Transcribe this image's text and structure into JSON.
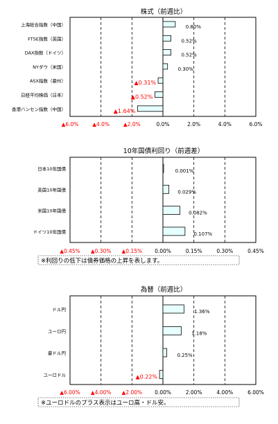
{
  "colors": {
    "bar_fill": "#e6ffff",
    "bar_stroke": "#000000",
    "negative_text": "#ff0000",
    "text": "#000000",
    "frame": "#000000"
  },
  "chart_data": [
    {
      "type": "bar",
      "orientation": "horizontal",
      "title": "株式（前週比）",
      "categories": [
        "上海総合指数（中国）",
        "FTSE指数（英国）",
        "DAX指数（ドイツ）",
        "NYダウ（米国）",
        "ASX指数（豪州）",
        "日経平均株価（日本）",
        "香港ハンセン指数（中国）"
      ],
      "values": [
        0.8,
        0.52,
        0.52,
        0.3,
        -0.31,
        -0.52,
        -1.64
      ],
      "data_labels": [
        "0.80%",
        "0.52%",
        "0.52%",
        "0.30%",
        "▲0.31%",
        "▲0.52%",
        "▲1.64%"
      ],
      "xlim": [
        -6.0,
        6.0
      ],
      "ticks": [
        -6.0,
        -4.0,
        -2.0,
        0.0,
        2.0,
        4.0,
        6.0
      ],
      "tick_labels": [
        "▲6.0%",
        "▲4.0%",
        "▲2.0%",
        "0.0%",
        "2.0%",
        "4.0%",
        "6.0%"
      ],
      "grid": "dashed vertical",
      "note": ""
    },
    {
      "type": "bar",
      "orientation": "horizontal",
      "title": "10年国債利回り（前週差）",
      "categories": [
        "日本10年国債",
        "英国10年国債",
        "米国10年国債",
        "ドイツ10年国債"
      ],
      "values": [
        0.001,
        0.029,
        0.082,
        0.107
      ],
      "data_labels": [
        "0.001%",
        "0.029%",
        "0.082%",
        "0.107%"
      ],
      "xlim": [
        -0.45,
        0.45
      ],
      "ticks": [
        -0.45,
        -0.3,
        -0.15,
        0.0,
        0.15,
        0.3,
        0.45
      ],
      "tick_labels": [
        "▲0.45%",
        "▲0.30%",
        "▲0.15%",
        "0.00%",
        "0.15%",
        "0.30%",
        "0.45%"
      ],
      "grid": "dashed vertical",
      "note": "※利回りの低下は債券価格の上昇を表します。"
    },
    {
      "type": "bar",
      "orientation": "horizontal",
      "title": "為替（前週比）",
      "categories": [
        "ドル円",
        "ユーロ円",
        "豪ドル円",
        "ユーロドル"
      ],
      "values": [
        1.36,
        1.18,
        0.25,
        -0.22
      ],
      "data_labels": [
        "1.36%",
        "1.18%",
        "0.25%",
        "▲0.22%"
      ],
      "xlim": [
        -6.0,
        6.0
      ],
      "ticks": [
        -6.0,
        -4.0,
        -2.0,
        0.0,
        2.0,
        4.0,
        6.0
      ],
      "tick_labels": [
        "▲6.00%",
        "▲4.00%",
        "▲2.00%",
        "0.00%",
        "2.00%",
        "4.00%",
        "6.00%"
      ],
      "grid": "dashed vertical",
      "note": "※ユーロドルのプラス表示はユーロ高・ドル安。"
    }
  ]
}
